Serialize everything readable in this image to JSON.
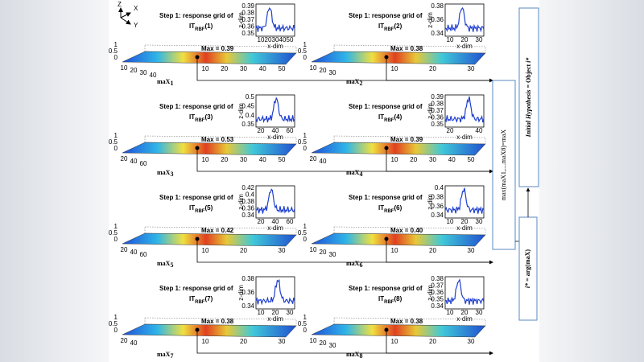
{
  "axes_icon": {
    "z": "Z",
    "x": "X",
    "y": "Y"
  },
  "panels": [
    {
      "step": "Step 1: response grid of",
      "grid_label": "IT",
      "grid_sub": "RBF",
      "grid_index": "(1)",
      "max": "Max = 0.39",
      "output": "maX",
      "output_sub": "1",
      "zticks": [
        "1",
        "0.5",
        "0"
      ],
      "depth_ticks": [
        "10",
        "20",
        "30",
        "40"
      ],
      "width_ticks": [
        "10",
        "20",
        "30",
        "40",
        "50"
      ],
      "inset": {
        "ylabel": "z-dim",
        "xlabel": "x-dim",
        "yticks": [
          "0.39",
          "0.38",
          "0.37",
          "0.36",
          "0.35"
        ],
        "xticks": [
          "10",
          "20",
          "30",
          "40",
          "50"
        ]
      }
    },
    {
      "step": "Step 1: response grid of",
      "grid_label": "IT",
      "grid_sub": "RBF",
      "grid_index": "(2)",
      "max": "Max = 0.38",
      "output": "maX",
      "output_sub": "2",
      "zticks": [
        "1",
        "0.5",
        "0"
      ],
      "depth_ticks": [
        "10",
        "20",
        "30"
      ],
      "width_ticks": [
        "10",
        "20",
        "30"
      ],
      "inset": {
        "ylabel": "z-dim",
        "xlabel": "x-dim",
        "yticks": [
          "0.38",
          "0.36",
          "0.34"
        ],
        "xticks": [
          "10",
          "20",
          "30"
        ]
      }
    },
    {
      "step": "Step 1: response grid of",
      "grid_label": "IT",
      "grid_sub": "RBF",
      "grid_index": "(3)",
      "max": "Max = 0.53",
      "output": "maX",
      "output_sub": "3",
      "zticks": [
        "1",
        "0.5",
        "0"
      ],
      "depth_ticks": [
        "20",
        "40",
        "60"
      ],
      "width_ticks": [
        "10",
        "20",
        "30",
        "40",
        "50"
      ],
      "inset": {
        "ylabel": "z-dim",
        "xlabel": "x-dim",
        "yticks": [
          "0.5",
          "0.45",
          "0.4",
          "0.35"
        ],
        "xticks": [
          "20",
          "40",
          "60"
        ]
      }
    },
    {
      "step": "Step 1: response grid of",
      "grid_label": "IT",
      "grid_sub": "RBF",
      "grid_index": "(4)",
      "max": "Max = 0.39",
      "output": "maX",
      "output_sub": "4",
      "zticks": [
        "1",
        "0.5",
        "0"
      ],
      "depth_ticks": [
        "20",
        "40"
      ],
      "width_ticks": [
        "10",
        "20",
        "30",
        "40",
        "50"
      ],
      "inset": {
        "ylabel": "z-dim",
        "xlabel": "x-dim",
        "yticks": [
          "0.39",
          "0.38",
          "0.37",
          "0.36",
          "0.35"
        ],
        "xticks": [
          "20",
          "40"
        ]
      }
    },
    {
      "step": "Step 1: response grid of",
      "grid_label": "IT",
      "grid_sub": "RBF",
      "grid_index": "(5)",
      "max": "Max = 0.42",
      "output": "maX",
      "output_sub": "5",
      "zticks": [
        "1",
        "0.5",
        "0"
      ],
      "depth_ticks": [
        "20",
        "40",
        "60"
      ],
      "width_ticks": [
        "10",
        "20",
        "30"
      ],
      "inset": {
        "ylabel": "z-dim",
        "xlabel": "x-dim",
        "yticks": [
          "0.42",
          "0.4",
          "0.38",
          "0.36",
          "0.34"
        ],
        "xticks": [
          "20",
          "40",
          "60"
        ]
      }
    },
    {
      "step": "Step 1: response grid of",
      "grid_label": "IT",
      "grid_sub": "RBF",
      "grid_index": "(6)",
      "max": "Max = 0.40",
      "output": "maX",
      "output_sub": "6",
      "zticks": [
        "1",
        "0.5",
        "0"
      ],
      "depth_ticks": [
        "10",
        "20",
        "30"
      ],
      "width_ticks": [
        "10",
        "20",
        "30"
      ],
      "inset": {
        "ylabel": "z-dim",
        "xlabel": "x-dim",
        "yticks": [
          "0.4",
          "0.38",
          "0.36",
          "0.34"
        ],
        "xticks": [
          "10",
          "20",
          "30"
        ]
      }
    },
    {
      "step": "Step 1: response grid of",
      "grid_label": "IT",
      "grid_sub": "RBF",
      "grid_index": "(7)",
      "max": "Max = 0.38",
      "output": "maX",
      "output_sub": "7",
      "zticks": [
        "1",
        "0.5",
        "0"
      ],
      "depth_ticks": [
        "20",
        "40"
      ],
      "width_ticks": [
        "10",
        "20",
        "30"
      ],
      "inset": {
        "ylabel": "z-dim",
        "xlabel": "x-dim",
        "yticks": [
          "0.38",
          "0.36",
          "0.34"
        ],
        "xticks": [
          "10",
          "20",
          "30"
        ]
      }
    },
    {
      "step": "Step 1: response grid of",
      "grid_label": "IT",
      "grid_sub": "RBF",
      "grid_index": "(8)",
      "max": "Max = 0.38",
      "output": "maX",
      "output_sub": "8",
      "zticks": [
        "1",
        "0.5",
        "0"
      ],
      "depth_ticks": [
        "10",
        "20",
        "30"
      ],
      "width_ticks": [
        "10",
        "20",
        "30"
      ],
      "inset": {
        "ylabel": "z-dim",
        "xlabel": "x-dim",
        "yticks": [
          "0.38",
          "0.37",
          "0.36",
          "0.35",
          "0.34"
        ],
        "xticks": [
          "10",
          "20",
          "30"
        ]
      }
    }
  ],
  "max_box": "max(maX1,....maX8)=maX",
  "arg_box": {
    "symbol": "i*",
    "text": " = arg(maX)"
  },
  "hypothesis_box": {
    "italic": "Initial Hypothesis",
    "text": " = Object ",
    "symbol": "i*"
  }
}
